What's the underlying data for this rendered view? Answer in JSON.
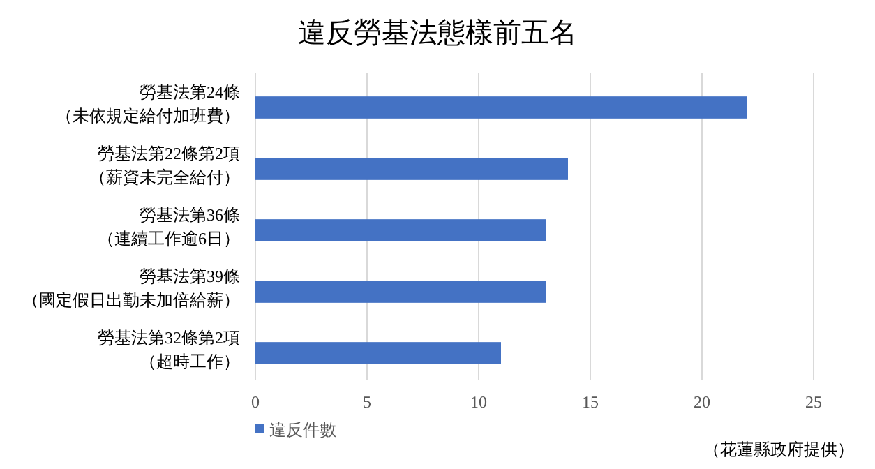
{
  "chart_data": {
    "type": "bar",
    "orientation": "horizontal",
    "title": "違反勞基法態樣前五名",
    "categories": [
      "勞基法第24條（未依規定給付加班費）",
      "勞基法第22條第2項（薪資未完全給付）",
      "勞基法第36條（連續工作逾6日）",
      "勞基法第39條（國定假日出勤未加倍給薪）",
      "勞基法第32條第2項（超時工作）"
    ],
    "series": [
      {
        "name": "違反件數",
        "color": "#4472c4",
        "values": [
          22,
          14,
          13,
          13,
          11
        ]
      }
    ],
    "xlim": [
      0,
      25
    ],
    "xticks": [
      0,
      5,
      10,
      15,
      20,
      25
    ],
    "grid": "x",
    "legend": "bottom left",
    "annotations": [
      "（花蓮縣政府提供）"
    ]
  }
}
